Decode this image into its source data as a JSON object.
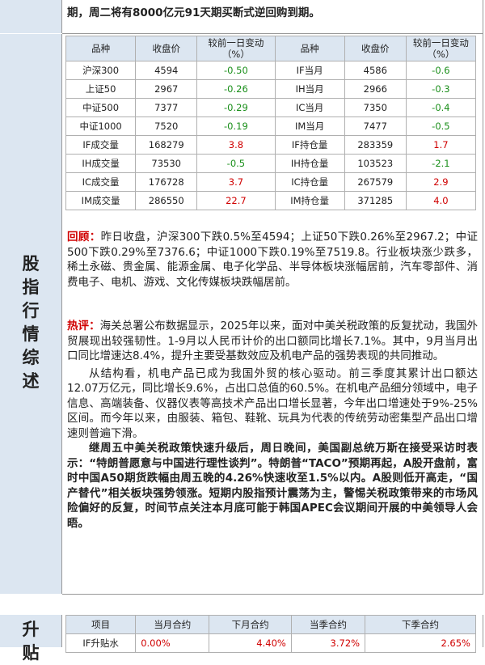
{
  "top_text": "期，周二将有8000亿元91天期买断式逆回购到期。",
  "section_label": "股指行情综述",
  "market_table": {
    "headers": [
      "品种",
      "收盘价",
      "较前一日变动（%）",
      "品种",
      "收盘价",
      "较前一日变动（%）"
    ],
    "rows": [
      [
        "沪深300",
        "4594",
        "-0.50",
        "IF当月",
        "4586",
        "-0.6"
      ],
      [
        "上证50",
        "2967",
        "-0.26",
        "IH当月",
        "2966",
        "-0.3"
      ],
      [
        "中证500",
        "7377",
        "-0.29",
        "IC当月",
        "7350",
        "-0.4"
      ],
      [
        "中证1000",
        "7520",
        "-0.19",
        "IM当月",
        "7477",
        "-0.5"
      ],
      [
        "IF成交量",
        "168279",
        "3.8",
        "IF持仓量",
        "283359",
        "1.7"
      ],
      [
        "IH成交量",
        "73530",
        "-0.5",
        "IH持仓量",
        "103523",
        "-2.1"
      ],
      [
        "IC成交量",
        "176728",
        "3.7",
        "IC持仓量",
        "267579",
        "2.9"
      ],
      [
        "IM成交量",
        "286550",
        "22.7",
        "IM持仓量",
        "371285",
        "4.0"
      ]
    ]
  },
  "review": {
    "label": "回顾：",
    "text": "昨日收盘，沪深300下跌0.5%至4594；上证50下跌0.26%至2967.2；中证500下跌0.29%至7376.6；中证1000下跌0.19%至7519.8。行业板块涨少跌多，稀土永磁、贵金属、能源金属、电子化学品、半导体板块涨幅居前，汽车零部件、消费电子、电机、游戏、文化传媒板块跌幅居前。"
  },
  "comment": {
    "label": "热评：",
    "text": "海关总署公布数据显示，2025年以来，面对中美关税政策的反复扰动，我国外贸展现出较强韧性。1-9月以人民币计价的出口额同比增长7.1%。其中，9月当月出口同比增速达8.4%，提升主要受基数效应及机电产品的强势表现的共同推动。",
    "paragraph": "从结构看，机电产品已成为我国外贸的核心驱动。前三季度其累计出口额达12.07万亿元，同比增长9.6%，占出口总值的60.5%。在机电产品细分领域中，电子信息、高端装备、仪器仪表等高技术产品出口增长显著，今年出口增速处于9%-25%区间。而今年以来，由服装、箱包、鞋靴、玩具为代表的传统劳动密集型产品出口增速则普遍下滑。",
    "bold_paragraph": "继周五中美关税政策快速升级后，周日晚间，美国副总统万斯在接受采访时表示：“特朗普愿意与中国进行理性谈判”。特朗普“TACO”预期再起，A股开盘前，富时中国A50期货跌幅由周五晚的4.26%快速收至1.5%以内。A股则低开高走，“国产替代”相关板块强势领涨。短期内股指预计震荡为主，警惕关税政策带来的市场风险偏好的反复，时间节点关注本月底可能于韩国APEC会议期间开展的中美领导人会晤。"
  },
  "basis": {
    "section_label": "升贴",
    "headers": [
      "项目",
      "当月合约",
      "下月合约",
      "当季合约",
      "下季合约"
    ],
    "rows": [
      [
        "IF升贴水",
        "0.00%",
        "4.40%",
        "3.72%",
        "2.65%"
      ]
    ]
  }
}
